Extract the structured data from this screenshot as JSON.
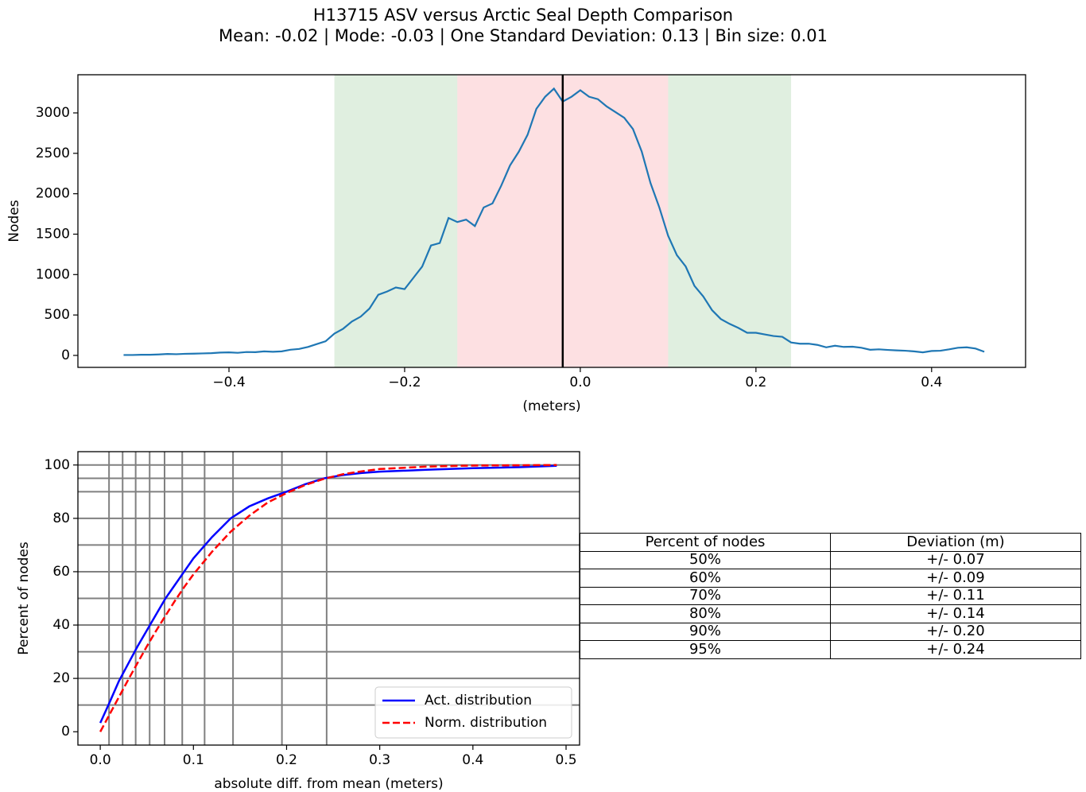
{
  "chart_data": [
    {
      "type": "line",
      "title": "H13715 ASV versus Arctic Seal Depth Comparison",
      "subtitle": "Mean: -0.02 | Mode: -0.03 | One Standard Deviation: 0.13 | Bin size: 0.01",
      "xlabel": "(meters)",
      "ylabel": "Nodes",
      "color": "#1f77b4",
      "x": [
        -0.52,
        -0.51,
        -0.5,
        -0.49,
        -0.48,
        -0.47,
        -0.46,
        -0.45,
        -0.44,
        -0.43,
        -0.42,
        -0.41,
        -0.4,
        -0.39,
        -0.38,
        -0.37,
        -0.36,
        -0.35,
        -0.34,
        -0.33,
        -0.32,
        -0.31,
        -0.3,
        -0.29,
        -0.28,
        -0.27,
        -0.26,
        -0.25,
        -0.24,
        -0.23,
        -0.22,
        -0.21,
        -0.2,
        -0.19,
        -0.18,
        -0.17,
        -0.16,
        -0.15,
        -0.14,
        -0.13,
        -0.12,
        -0.11,
        -0.1,
        -0.09,
        -0.08,
        -0.07,
        -0.06,
        -0.05,
        -0.04,
        -0.03,
        -0.02,
        -0.01,
        0.0,
        0.01,
        0.02,
        0.03,
        0.04,
        0.05,
        0.06,
        0.07,
        0.08,
        0.09,
        0.1,
        0.11,
        0.12,
        0.13,
        0.14,
        0.15,
        0.16,
        0.17,
        0.18,
        0.19,
        0.2,
        0.21,
        0.22,
        0.23,
        0.24,
        0.25,
        0.26,
        0.27,
        0.28,
        0.29,
        0.3,
        0.31,
        0.32,
        0.33,
        0.34,
        0.35,
        0.36,
        0.37,
        0.38,
        0.39,
        0.4,
        0.41,
        0.42,
        0.43,
        0.44,
        0.45,
        0.46
      ],
      "values": [
        5,
        5,
        8,
        8,
        12,
        18,
        15,
        20,
        22,
        25,
        28,
        35,
        38,
        32,
        42,
        40,
        50,
        45,
        50,
        70,
        80,
        105,
        140,
        175,
        270,
        330,
        420,
        480,
        580,
        750,
        790,
        840,
        820,
        960,
        1100,
        1360,
        1390,
        1700,
        1650,
        1680,
        1600,
        1830,
        1880,
        2100,
        2350,
        2520,
        2730,
        3050,
        3200,
        3300,
        3140,
        3200,
        3280,
        3200,
        3170,
        3080,
        3010,
        2940,
        2800,
        2520,
        2130,
        1830,
        1480,
        1240,
        1100,
        860,
        730,
        560,
        450,
        390,
        340,
        280,
        280,
        260,
        240,
        230,
        160,
        145,
        145,
        130,
        100,
        120,
        105,
        108,
        95,
        70,
        75,
        68,
        62,
        58,
        50,
        38,
        55,
        58,
        75,
        95,
        100,
        85,
        45
      ],
      "xlim": [
        -0.572,
        0.507
      ],
      "ylim": [
        -148,
        3472
      ],
      "xticks": [
        {
          "value": -0.4,
          "label": "−0.4"
        },
        {
          "value": -0.2,
          "label": "−0.2"
        },
        {
          "value": 0,
          "label": "0.0"
        },
        0.2,
        0.4
      ],
      "yticks": [
        0,
        500,
        1000,
        1500,
        2000,
        2500,
        3000
      ],
      "shaded_regions": [
        {
          "range": [
            -0.28,
            0.24
          ],
          "color": "#e0efe0"
        },
        {
          "range": [
            -0.14,
            0.1
          ],
          "color": "#fde0e2"
        }
      ],
      "vlines": [
        {
          "x": -0.02,
          "color": "#000000"
        }
      ]
    },
    {
      "type": "line",
      "xlabel": "absolute diff. from mean (meters)",
      "ylabel": "Percent of nodes",
      "x": [
        0,
        0.01,
        0.02,
        0.03,
        0.04,
        0.05,
        0.06,
        0.07,
        0.08,
        0.09,
        0.1,
        0.12,
        0.14,
        0.16,
        0.18,
        0.2,
        0.22,
        0.24,
        0.26,
        0.28,
        0.3,
        0.35,
        0.4,
        0.45,
        0.49
      ],
      "series": [
        {
          "name": "Act. distribution",
          "color": "#0000ff",
          "linestyle": "solid",
          "values": [
            3.3,
            11,
            19,
            25.5,
            32,
            38,
            44,
            50,
            55,
            60,
            65,
            73,
            80,
            84.5,
            87.5,
            90,
            92.8,
            95,
            96.2,
            97,
            97.5,
            98.2,
            98.8,
            99.2,
            99.7
          ]
        },
        {
          "name": "Norm. distribution",
          "color": "#ff0000",
          "linestyle": "dashed",
          "values": [
            0,
            6.5,
            13,
            19.5,
            25.8,
            32,
            37.9,
            43.5,
            49,
            54.2,
            59,
            67.5,
            75,
            81,
            86,
            89.5,
            92.5,
            94.8,
            96.5,
            97.6,
            98.5,
            99.4,
            99.8,
            99.9,
            100
          ]
        }
      ],
      "xlim": [
        -0.024,
        0.5145
      ],
      "ylim": [
        -5,
        105
      ],
      "xticks": [
        {
          "value": 0,
          "label": "0.0"
        },
        0.1,
        0.2,
        0.3,
        0.4,
        0.5
      ],
      "yticks": [
        0,
        20,
        40,
        60,
        80,
        100
      ],
      "xgrid": [
        0.0094,
        0.024,
        0.038,
        0.053,
        0.069,
        0.088,
        0.112,
        0.1425,
        0.195,
        0.243
      ],
      "ygrid": [
        10,
        20,
        30,
        40,
        50,
        60,
        70,
        80,
        90,
        95,
        100
      ],
      "legend": "lower right"
    }
  ],
  "table": {
    "header": [
      "Percent of nodes",
      "Deviation (m)"
    ],
    "rows": [
      [
        "50%",
        "+/- 0.07"
      ],
      [
        "60%",
        "+/- 0.09"
      ],
      [
        "70%",
        "+/- 0.11"
      ],
      [
        "80%",
        "+/- 0.14"
      ],
      [
        "90%",
        "+/- 0.20"
      ],
      [
        "95%",
        "+/- 0.24"
      ]
    ]
  }
}
